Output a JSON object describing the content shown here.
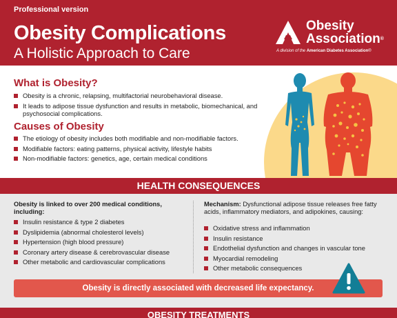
{
  "header": {
    "version": "Professional version",
    "title": "Obesity Complications",
    "subtitle": "A Holistic Approach to Care",
    "logo_line1": "Obesity",
    "logo_line2": "Association",
    "logo_trademark": "®",
    "logo_tag_prefix": "A division of the",
    "logo_tag_org": "American Diabetes Association",
    "logo_tag_trademark": "®"
  },
  "what_is": {
    "heading": "What is Obesity?",
    "bullets": [
      "Obesity is a chronic, relapsing, multifactorial neurobehavioral disease.",
      "It leads to adipose tissue dysfunction and results in metabolic, biomechanical, and psychosocial complications."
    ]
  },
  "causes": {
    "heading": "Causes of Obesity",
    "bullets": [
      "The etiology of obesity includes both modifiable and non-modifiable factors.",
      "Modifiable factors: eating patterns, physical activity, lifestyle habits",
      "Non-modifiable factors: genetics, age, certain medical conditions"
    ]
  },
  "health": {
    "heading": "HEALTH CONSEQUENCES",
    "left_head": "Obesity is linked to over 200 medical conditions, including:",
    "left_items": [
      "Insulin resistance & type 2 diabetes",
      "Dyslipidemia (abnormal cholesterol levels)",
      "Hypertension (high blood pressure)",
      "Coronary artery disease & cerebrovascular disease",
      "Other metabolic and cardiovascular complications"
    ],
    "right_head_bold": "Mechanism:",
    "right_head_text": " Dysfunctional adipose tissue releases free fatty acids, inflammatory mediators, and adipokines, causing:",
    "right_items": [
      "Oxidative stress and inflammation",
      "Insulin resistance",
      "Endothelial dysfunction and changes in vascular tone",
      "Myocardial remodeling",
      "Other metabolic consequences"
    ],
    "callout": "Obesity is directly associated with decreased life expectancy."
  },
  "treatments": {
    "heading": "OBESITY TREATMENTS"
  },
  "colors": {
    "brand_red": "#b0222f",
    "callout_red": "#e2574c",
    "figure_blue": "#1e8bb0",
    "figure_red": "#e5472f",
    "sun_yellow": "#fbd98a",
    "warning_teal": "#137e96"
  },
  "icons": {
    "logo": "triangle-a-logo-icon",
    "warning": "warning-triangle-icon",
    "bullet": "red-square-bullet-icon",
    "figures": "body-silhouettes-icon"
  }
}
